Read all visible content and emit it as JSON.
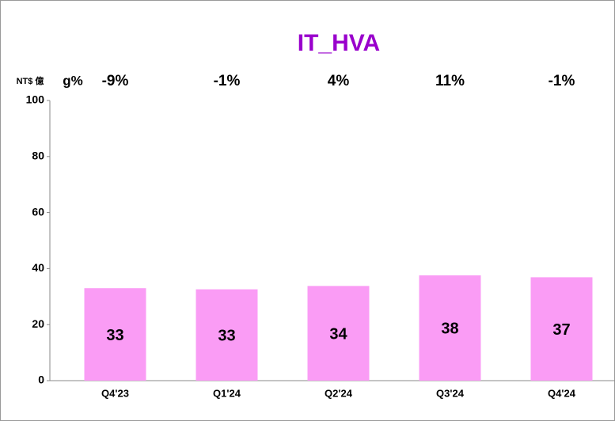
{
  "chart_data": {
    "type": "bar",
    "title": "IT_HVA",
    "y_unit_label": "NT$ 億",
    "growth_title": "g%",
    "growth_labels": [
      "-9%",
      "-1%",
      "4%",
      "11%",
      "-1%"
    ],
    "categories": [
      "Q4'23",
      "Q1'24",
      "Q2'24",
      "Q3'24",
      "Q4'24"
    ],
    "values": [
      33,
      32.6,
      33.8,
      37.6,
      36.9
    ],
    "value_labels": [
      "33",
      "33",
      "34",
      "38",
      "37"
    ],
    "color": "#fa9cf5",
    "ylim": [
      0,
      100
    ],
    "yticks": [
      0,
      20,
      40,
      60,
      80,
      100
    ],
    "grid": false
  }
}
